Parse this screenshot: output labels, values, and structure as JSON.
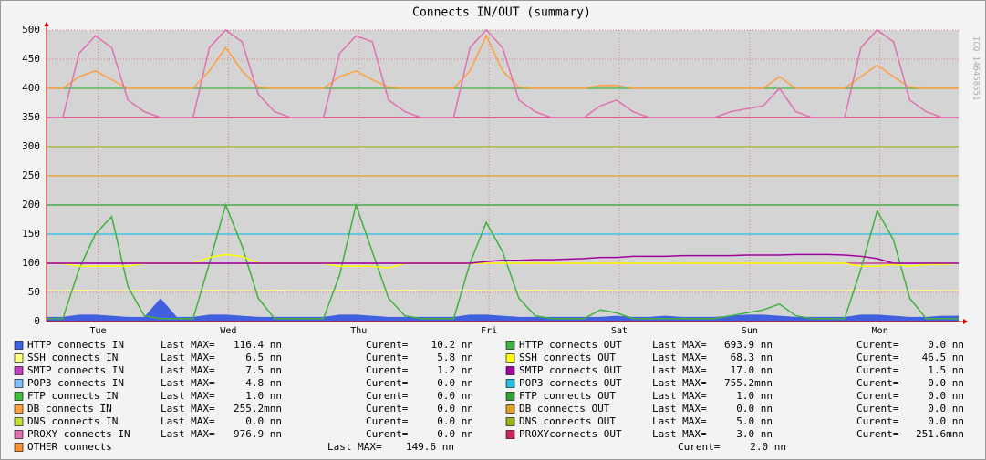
{
  "chart_data": {
    "type": "line",
    "title": "Connects IN/OUT (summary)",
    "side_note": "ICQ 146458551",
    "max_label": "Last MAX=",
    "cur_label": "Curent=",
    "ylim": [
      0,
      500
    ],
    "yticks": [
      0,
      50,
      100,
      150,
      200,
      250,
      300,
      350,
      400,
      450,
      500
    ],
    "xlim": [
      0,
      168
    ],
    "xticks": [
      {
        "value": 9.5,
        "label": "Tue"
      },
      {
        "value": 33.5,
        "label": "Wed"
      },
      {
        "value": 57.5,
        "label": "Thu"
      },
      {
        "value": 81.5,
        "label": "Fri"
      },
      {
        "value": 105.5,
        "label": "Sat"
      },
      {
        "value": 129.5,
        "label": "Sun"
      },
      {
        "value": 153.5,
        "label": "Mon"
      }
    ],
    "grid": true,
    "hrules": [
      {
        "value": 400,
        "color": "#40b040"
      },
      {
        "value": 350,
        "color": "#d02060"
      },
      {
        "value": 300,
        "color": "#a0b020"
      },
      {
        "value": 250,
        "color": "#e0a020"
      },
      {
        "value": 200,
        "color": "#30a030"
      },
      {
        "value": 150,
        "color": "#20c0e0"
      },
      {
        "value": 100,
        "color": "#c02080"
      }
    ],
    "x": [
      0,
      3,
      6,
      9,
      12,
      15,
      18,
      21,
      24,
      27,
      30,
      33,
      36,
      39,
      42,
      45,
      48,
      51,
      54,
      57,
      60,
      63,
      66,
      69,
      72,
      75,
      78,
      81,
      84,
      87,
      90,
      93,
      96,
      99,
      102,
      105,
      108,
      111,
      114,
      117,
      120,
      123,
      126,
      129,
      132,
      135,
      138,
      141,
      144,
      147,
      150,
      153,
      156,
      159,
      162,
      165,
      168
    ],
    "series": [
      {
        "name": "HTTP connects IN",
        "color": "#4060e0",
        "style": "area",
        "last_max": "116.4 nn",
        "current": "10.2 nn",
        "values": [
          8,
          8,
          12,
          12,
          10,
          8,
          8,
          40,
          8,
          8,
          12,
          12,
          10,
          8,
          8,
          8,
          8,
          8,
          12,
          12,
          10,
          8,
          8,
          8,
          8,
          8,
          12,
          12,
          10,
          8,
          8,
          8,
          8,
          8,
          8,
          10,
          8,
          8,
          10,
          8,
          8,
          8,
          10,
          12,
          12,
          10,
          8,
          8,
          8,
          8,
          12,
          12,
          10,
          8,
          8,
          10,
          10
        ]
      },
      {
        "name": "SSH connects IN",
        "color": "#ffff80",
        "last_max": "6.5 nn",
        "current": "5.8 nn",
        "values": [
          53,
          53,
          54,
          53,
          53,
          53,
          54,
          53,
          53,
          53,
          54,
          53,
          53,
          53,
          54,
          53,
          53,
          53,
          54,
          53,
          53,
          53,
          54,
          53,
          53,
          53,
          54,
          53,
          53,
          53,
          54,
          53,
          53,
          53,
          54,
          53,
          53,
          53,
          54,
          53,
          53,
          53,
          54,
          53,
          53,
          53,
          54,
          53,
          53,
          53,
          54,
          53,
          53,
          53,
          54,
          53,
          53
        ]
      },
      {
        "name": "SMTP connects IN",
        "color": "#c040c0",
        "last_max": "7.5 nn",
        "current": "1.2 nn"
      },
      {
        "name": "POP3 connects IN",
        "color": "#80c0ff",
        "last_max": "4.8 nn",
        "current": "0.0 nn"
      },
      {
        "name": "FTP connects IN",
        "color": "#40c040",
        "last_max": "1.0 nn",
        "current": "0.0 nn"
      },
      {
        "name": "DB connects IN",
        "color": "#ffa040",
        "last_max": "255.2mnn",
        "current": "0.0 nn",
        "values": [
          400,
          400,
          420,
          430,
          415,
          400,
          400,
          400,
          400,
          400,
          430,
          470,
          430,
          402,
          400,
          400,
          400,
          400,
          420,
          430,
          415,
          402,
          400,
          400,
          400,
          400,
          430,
          490,
          430,
          402,
          400,
          400,
          400,
          400,
          405,
          405,
          400,
          400,
          400,
          400,
          400,
          400,
          400,
          400,
          400,
          420,
          400,
          400,
          400,
          400,
          420,
          440,
          420,
          402,
          400,
          400,
          400
        ]
      },
      {
        "name": "DNS connects IN",
        "color": "#c0e040",
        "last_max": "0.0 nn",
        "current": "0.0 nn"
      },
      {
        "name": "PROXY connects IN",
        "color": "#e070b0",
        "last_max": "976.9 nn",
        "current": "0.0 nn",
        "values": [
          350,
          350,
          460,
          490,
          470,
          380,
          360,
          350,
          350,
          350,
          470,
          500,
          480,
          390,
          360,
          350,
          350,
          350,
          460,
          490,
          480,
          380,
          360,
          350,
          350,
          350,
          470,
          500,
          470,
          380,
          360,
          350,
          350,
          350,
          370,
          380,
          360,
          350,
          350,
          350,
          350,
          350,
          360,
          365,
          370,
          400,
          360,
          350,
          350,
          350,
          470,
          500,
          480,
          380,
          360,
          350,
          350
        ]
      },
      {
        "name": "OTHER connects",
        "color": "#ff9030",
        "last_max": "149.6 nn",
        "current": "2.0 nn"
      },
      {
        "name": "HTTP connects OUT",
        "color": "#40b040",
        "last_max": "693.9 nn",
        "current": "0.0 nn",
        "values": [
          5,
          5,
          90,
          150,
          180,
          60,
          10,
          5,
          5,
          5,
          100,
          200,
          130,
          40,
          5,
          5,
          5,
          5,
          80,
          200,
          120,
          40,
          10,
          5,
          5,
          5,
          100,
          170,
          120,
          40,
          10,
          5,
          5,
          5,
          20,
          15,
          5,
          5,
          5,
          5,
          5,
          5,
          10,
          15,
          20,
          30,
          10,
          5,
          5,
          5,
          90,
          190,
          140,
          40,
          5,
          5,
          5
        ]
      },
      {
        "name": "SSH connects OUT",
        "color": "#ffff00",
        "last_max": "68.3 nn",
        "current": "46.5 nn",
        "values": [
          100,
          100,
          95,
          95,
          95,
          95,
          100,
          100,
          100,
          100,
          110,
          115,
          112,
          100,
          100,
          100,
          100,
          100,
          95,
          95,
          95,
          92,
          100,
          100,
          100,
          100,
          100,
          100,
          100,
          100,
          100,
          100,
          100,
          100,
          100,
          100,
          100,
          100,
          100,
          100,
          100,
          100,
          100,
          100,
          100,
          100,
          100,
          100,
          100,
          100,
          95,
          95,
          98,
          95,
          98,
          98,
          100
        ]
      },
      {
        "name": "SMTP connects OUT",
        "color": "#a000a0",
        "last_max": "17.0 nn",
        "current": "1.5 nn",
        "values": [
          100,
          100,
          100,
          100,
          100,
          100,
          100,
          100,
          100,
          100,
          100,
          100,
          100,
          100,
          100,
          100,
          100,
          100,
          100,
          100,
          100,
          100,
          100,
          100,
          100,
          100,
          100,
          103,
          105,
          105,
          106,
          106,
          107,
          108,
          110,
          110,
          112,
          112,
          112,
          113,
          113,
          113,
          113,
          114,
          114,
          114,
          115,
          115,
          115,
          114,
          112,
          108,
          100,
          100,
          100,
          100,
          100
        ]
      },
      {
        "name": "POP3 connects OUT",
        "color": "#20c0e0",
        "last_max": "755.2mnn",
        "current": "0.0 nn"
      },
      {
        "name": "FTP connects OUT",
        "color": "#30a030",
        "last_max": "1.0 nn",
        "current": "0.0 nn"
      },
      {
        "name": "DB connects OUT",
        "color": "#e0a020",
        "last_max": "0.0 nn",
        "current": "0.0 nn"
      },
      {
        "name": "DNS connects OUT",
        "color": "#a0b020",
        "last_max": "5.0 nn",
        "current": "0.0 nn"
      },
      {
        "name": "PROXYconnects OUT",
        "color": "#d02060",
        "last_max": "3.0 nn",
        "current": "251.6mnn"
      }
    ]
  }
}
